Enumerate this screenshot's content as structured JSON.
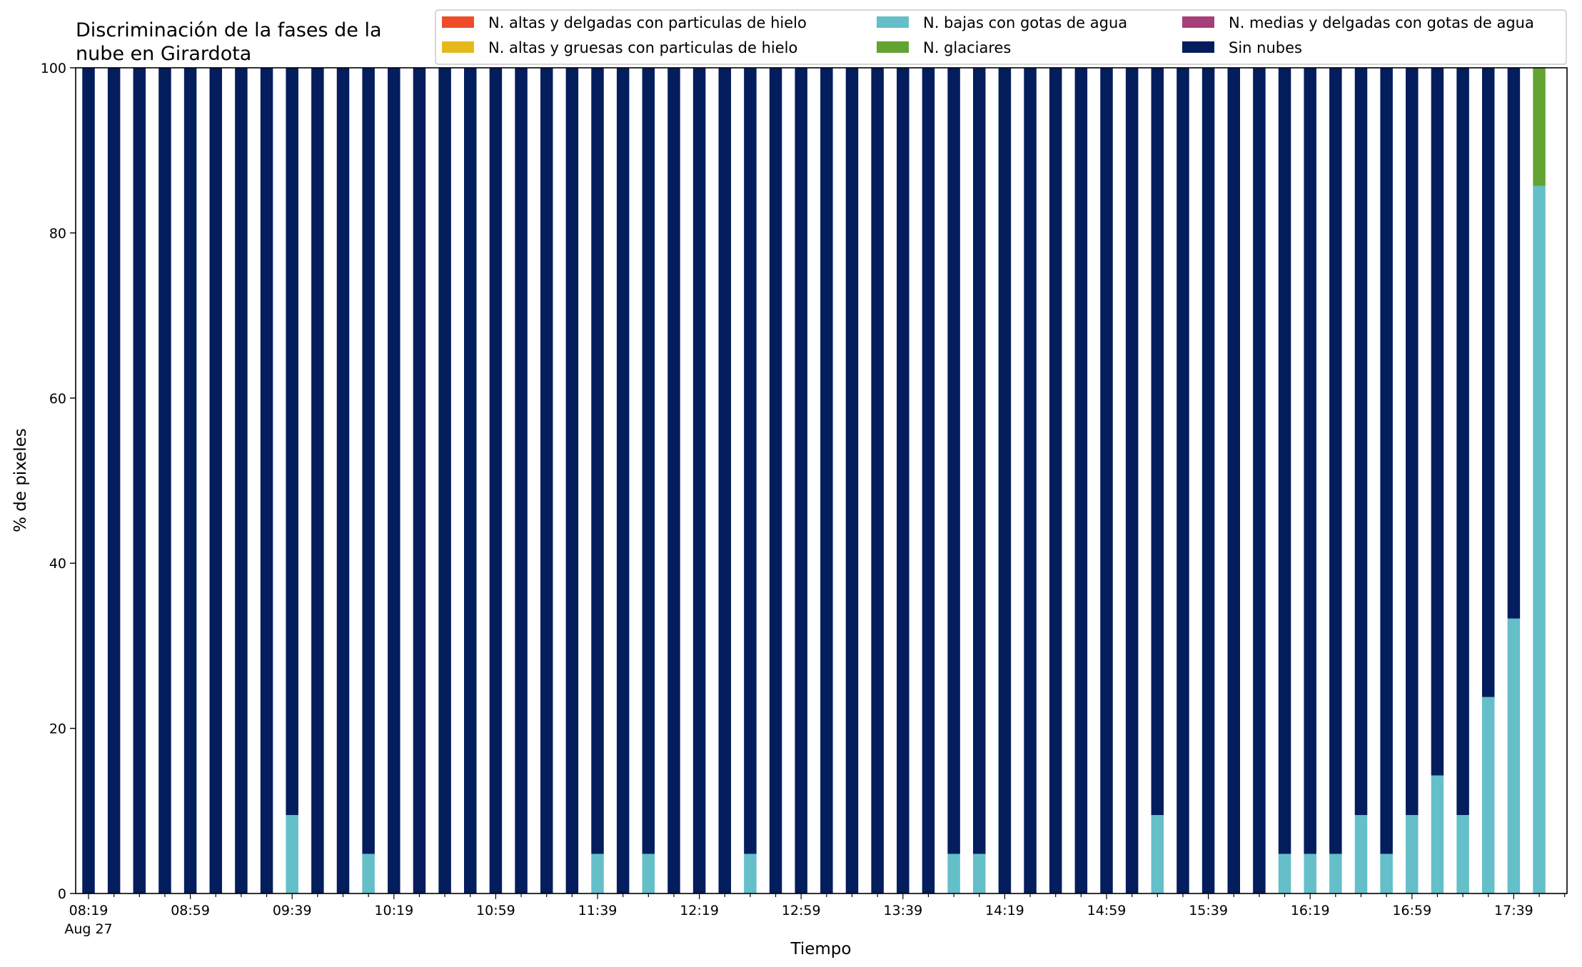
{
  "chart_data": {
    "type": "bar",
    "stacked": true,
    "title": "Discriminación de la fases de la\nnube en Girardota",
    "xlabel": "Tiempo",
    "ylabel": "% de pixeles",
    "ylim": [
      0,
      100
    ],
    "yticks": [
      0,
      20,
      40,
      60,
      80,
      100
    ],
    "grid": false,
    "legend_position": "top-right",
    "x": [
      "08:19",
      "08:29",
      "08:39",
      "08:49",
      "08:59",
      "09:09",
      "09:19",
      "09:29",
      "09:39",
      "09:49",
      "09:59",
      "10:09",
      "10:19",
      "10:29",
      "10:39",
      "10:49",
      "10:59",
      "11:09",
      "11:19",
      "11:29",
      "11:39",
      "11:49",
      "11:59",
      "12:09",
      "12:19",
      "12:29",
      "12:39",
      "12:49",
      "12:59",
      "13:09",
      "13:19",
      "13:29",
      "13:39",
      "13:49",
      "13:59",
      "14:09",
      "14:19",
      "14:29",
      "14:39",
      "14:49",
      "14:59",
      "15:09",
      "15:19",
      "15:29",
      "15:39",
      "15:49",
      "15:59",
      "16:09",
      "16:19",
      "16:29",
      "16:39",
      "16:49",
      "16:59",
      "17:09",
      "17:19",
      "17:29",
      "17:39",
      "17:49"
    ],
    "xtick_labels": [
      "08:19",
      "08:59",
      "09:39",
      "10:19",
      "10:59",
      "11:39",
      "12:19",
      "12:59",
      "13:39",
      "14:19",
      "14:59",
      "15:39",
      "16:19",
      "16:59",
      "17:39"
    ],
    "xtick_sublabel": "Aug 27",
    "series": [
      {
        "name": "N. altas y delgadas con particulas de hielo",
        "color": "#ee4c2b",
        "values": [
          0,
          0,
          0,
          0,
          0,
          0,
          0,
          0,
          0,
          0,
          0,
          0,
          0,
          0,
          0,
          0,
          0,
          0,
          0,
          0,
          0,
          0,
          0,
          0,
          0,
          0,
          0,
          0,
          0,
          0,
          0,
          0,
          0,
          0,
          0,
          0,
          0,
          0,
          0,
          0,
          0,
          0,
          0,
          0,
          0,
          0,
          0,
          0,
          0,
          0,
          0,
          0,
          0,
          0,
          0,
          0,
          0,
          0
        ]
      },
      {
        "name": "N. altas y gruesas con particulas de hielo",
        "color": "#e5b91b",
        "values": [
          0,
          0,
          0,
          0,
          0,
          0,
          0,
          0,
          0,
          0,
          0,
          0,
          0,
          0,
          0,
          0,
          0,
          0,
          0,
          0,
          0,
          0,
          0,
          0,
          0,
          0,
          0,
          0,
          0,
          0,
          0,
          0,
          0,
          0,
          0,
          0,
          0,
          0,
          0,
          0,
          0,
          0,
          0,
          0,
          0,
          0,
          0,
          0,
          0,
          0,
          0,
          0,
          0,
          0,
          0,
          0,
          0,
          0
        ]
      },
      {
        "name": "N. bajas con gotas de agua",
        "color": "#64bfc9",
        "values": [
          0,
          0,
          0,
          0,
          0,
          0,
          0,
          0,
          9.5,
          0,
          0,
          4.8,
          0,
          0,
          0,
          0,
          0,
          0,
          0,
          0,
          4.8,
          0,
          4.8,
          0,
          0,
          0,
          4.8,
          0,
          0,
          0,
          0,
          0,
          0,
          0,
          4.8,
          4.8,
          0,
          0,
          0,
          0,
          0,
          0,
          9.5,
          0,
          0,
          0,
          0,
          4.8,
          4.8,
          4.8,
          9.5,
          4.8,
          9.5,
          14.3,
          9.5,
          23.8,
          33.3,
          85.7
        ]
      },
      {
        "name": "N. glaciares",
        "color": "#62a331",
        "values": [
          0,
          0,
          0,
          0,
          0,
          0,
          0,
          0,
          0,
          0,
          0,
          0,
          0,
          0,
          0,
          0,
          0,
          0,
          0,
          0,
          0,
          0,
          0,
          0,
          0,
          0,
          0,
          0,
          0,
          0,
          0,
          0,
          0,
          0,
          0,
          0,
          0,
          0,
          0,
          0,
          0,
          0,
          0,
          0,
          0,
          0,
          0,
          0,
          0,
          0,
          0,
          0,
          0,
          0,
          0,
          0,
          0,
          14.3
        ]
      },
      {
        "name": "N. medias y delgadas con gotas de agua",
        "color": "#a63f77",
        "values": [
          0,
          0,
          0,
          0,
          0,
          0,
          0,
          0,
          0,
          0,
          0,
          0,
          0,
          0,
          0,
          0,
          0,
          0,
          0,
          0,
          0,
          0,
          0,
          0,
          0,
          0,
          0,
          0,
          0,
          0,
          0,
          0,
          0,
          0,
          0,
          0,
          0,
          0,
          0,
          0,
          0,
          0,
          0,
          0,
          0,
          0,
          0,
          0,
          0,
          0,
          0,
          0,
          0,
          0,
          0,
          0,
          0,
          0
        ]
      },
      {
        "name": "Sin nubes",
        "color": "#031d5d",
        "values": [
          100,
          100,
          100,
          100,
          100,
          100,
          100,
          100,
          90.5,
          100,
          100,
          95.2,
          100,
          100,
          100,
          100,
          100,
          100,
          100,
          100,
          95.2,
          100,
          95.2,
          100,
          100,
          100,
          95.2,
          100,
          100,
          100,
          100,
          100,
          100,
          100,
          95.2,
          95.2,
          100,
          100,
          100,
          100,
          100,
          100,
          90.5,
          100,
          100,
          100,
          100,
          95.2,
          95.2,
          95.2,
          90.5,
          95.2,
          90.5,
          85.7,
          90.5,
          76.2,
          66.7,
          0
        ]
      }
    ]
  }
}
